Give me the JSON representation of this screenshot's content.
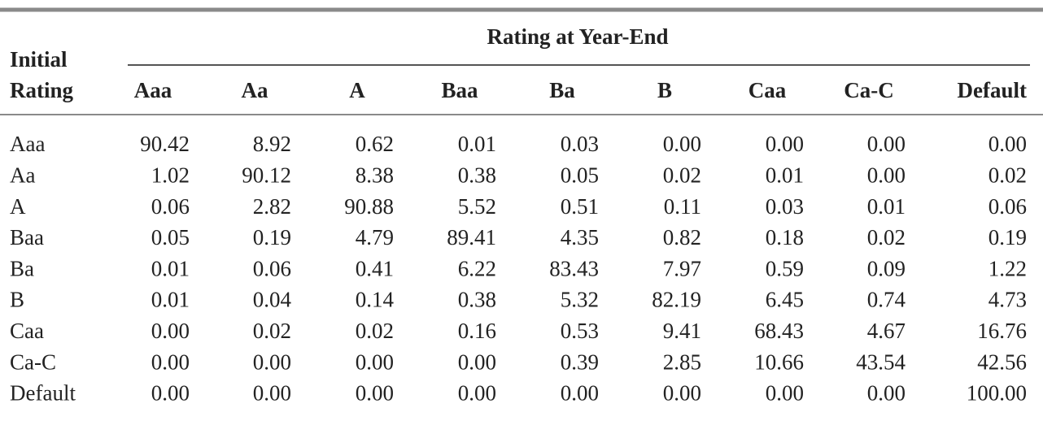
{
  "header": {
    "group_title": "Rating at Year-End",
    "row_header": [
      "Initial",
      "Rating"
    ]
  },
  "table": {
    "columns": [
      "Aaa",
      "Aa",
      "A",
      "Baa",
      "Ba",
      "B",
      "Caa",
      "Ca-C",
      "Default"
    ],
    "rows": [
      {
        "label": "Aaa",
        "values": [
          "90.42",
          "8.92",
          "0.62",
          "0.01",
          "0.03",
          "0.00",
          "0.00",
          "0.00",
          "0.00"
        ]
      },
      {
        "label": "Aa",
        "values": [
          "1.02",
          "90.12",
          "8.38",
          "0.38",
          "0.05",
          "0.02",
          "0.01",
          "0.00",
          "0.02"
        ]
      },
      {
        "label": "A",
        "values": [
          "0.06",
          "2.82",
          "90.88",
          "5.52",
          "0.51",
          "0.11",
          "0.03",
          "0.01",
          "0.06"
        ]
      },
      {
        "label": "Baa",
        "values": [
          "0.05",
          "0.19",
          "4.79",
          "89.41",
          "4.35",
          "0.82",
          "0.18",
          "0.02",
          "0.19"
        ]
      },
      {
        "label": "Ba",
        "values": [
          "0.01",
          "0.06",
          "0.41",
          "6.22",
          "83.43",
          "7.97",
          "0.59",
          "0.09",
          "1.22"
        ]
      },
      {
        "label": "B",
        "values": [
          "0.01",
          "0.04",
          "0.14",
          "0.38",
          "5.32",
          "82.19",
          "6.45",
          "0.74",
          "4.73"
        ]
      },
      {
        "label": "Caa",
        "values": [
          "0.00",
          "0.02",
          "0.02",
          "0.16",
          "0.53",
          "9.41",
          "68.43",
          "4.67",
          "16.76"
        ]
      },
      {
        "label": "Ca-C",
        "values": [
          "0.00",
          "0.00",
          "0.00",
          "0.00",
          "0.39",
          "2.85",
          "10.66",
          "43.54",
          "42.56"
        ]
      },
      {
        "label": "Default",
        "values": [
          "0.00",
          "0.00",
          "0.00",
          "0.00",
          "0.00",
          "0.00",
          "0.00",
          "0.00",
          "100.00"
        ]
      }
    ]
  }
}
